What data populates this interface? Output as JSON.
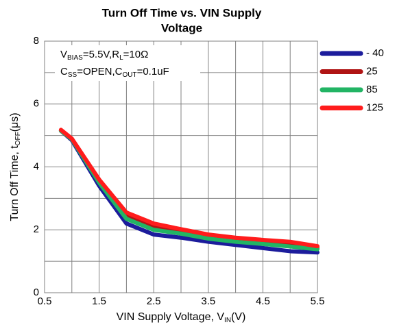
{
  "chart_data": {
    "type": "line",
    "title": [
      "Turn Off Time vs. VIN Supply",
      "Voltage"
    ],
    "xlabel_parts": [
      "VIN Supply Voltage, V",
      "IN",
      "(V)"
    ],
    "ylabel_parts": [
      "Turn Off Time, t",
      "OFF",
      "(μs)"
    ],
    "annotations": [
      [
        "V",
        "BIAS",
        "=5.5V,R",
        "L",
        "=10Ω"
      ],
      [
        "C",
        "SS",
        "=OPEN,C",
        "OUT",
        "=0.1uF"
      ]
    ],
    "x": [
      0.8,
      1.0,
      1.5,
      2.0,
      2.5,
      3.0,
      3.5,
      4.0,
      4.5,
      5.0,
      5.5
    ],
    "series": [
      {
        "name": "- 40",
        "color": "#1c1c9c",
        "values": [
          5.15,
          4.85,
          3.4,
          2.2,
          1.85,
          1.75,
          1.62,
          1.52,
          1.42,
          1.32,
          1.28
        ]
      },
      {
        "name": "25",
        "color": "#b01414",
        "values": [
          5.15,
          4.88,
          3.55,
          2.45,
          2.1,
          1.95,
          1.8,
          1.7,
          1.62,
          1.55,
          1.42
        ]
      },
      {
        "name": "85",
        "color": "#22b464",
        "values": [
          5.15,
          4.88,
          3.5,
          2.35,
          2.0,
          1.88,
          1.72,
          1.62,
          1.55,
          1.47,
          1.38
        ]
      },
      {
        "name": "125",
        "color": "#ff1c1c",
        "values": [
          5.18,
          4.9,
          3.6,
          2.55,
          2.2,
          2.02,
          1.85,
          1.75,
          1.68,
          1.62,
          1.48
        ]
      }
    ],
    "xlim": [
      0.5,
      5.5
    ],
    "xticks": [
      0.5,
      1.5,
      2.5,
      3.5,
      4.5,
      5.5
    ],
    "xgrid": [
      1.0,
      2.0,
      3.0,
      4.0,
      5.0
    ],
    "ylim": [
      0,
      8
    ],
    "yticks": [
      0,
      2,
      4,
      6,
      8
    ],
    "ygrid": [
      1,
      3,
      5,
      7
    ],
    "grid": true,
    "legend": "right"
  }
}
